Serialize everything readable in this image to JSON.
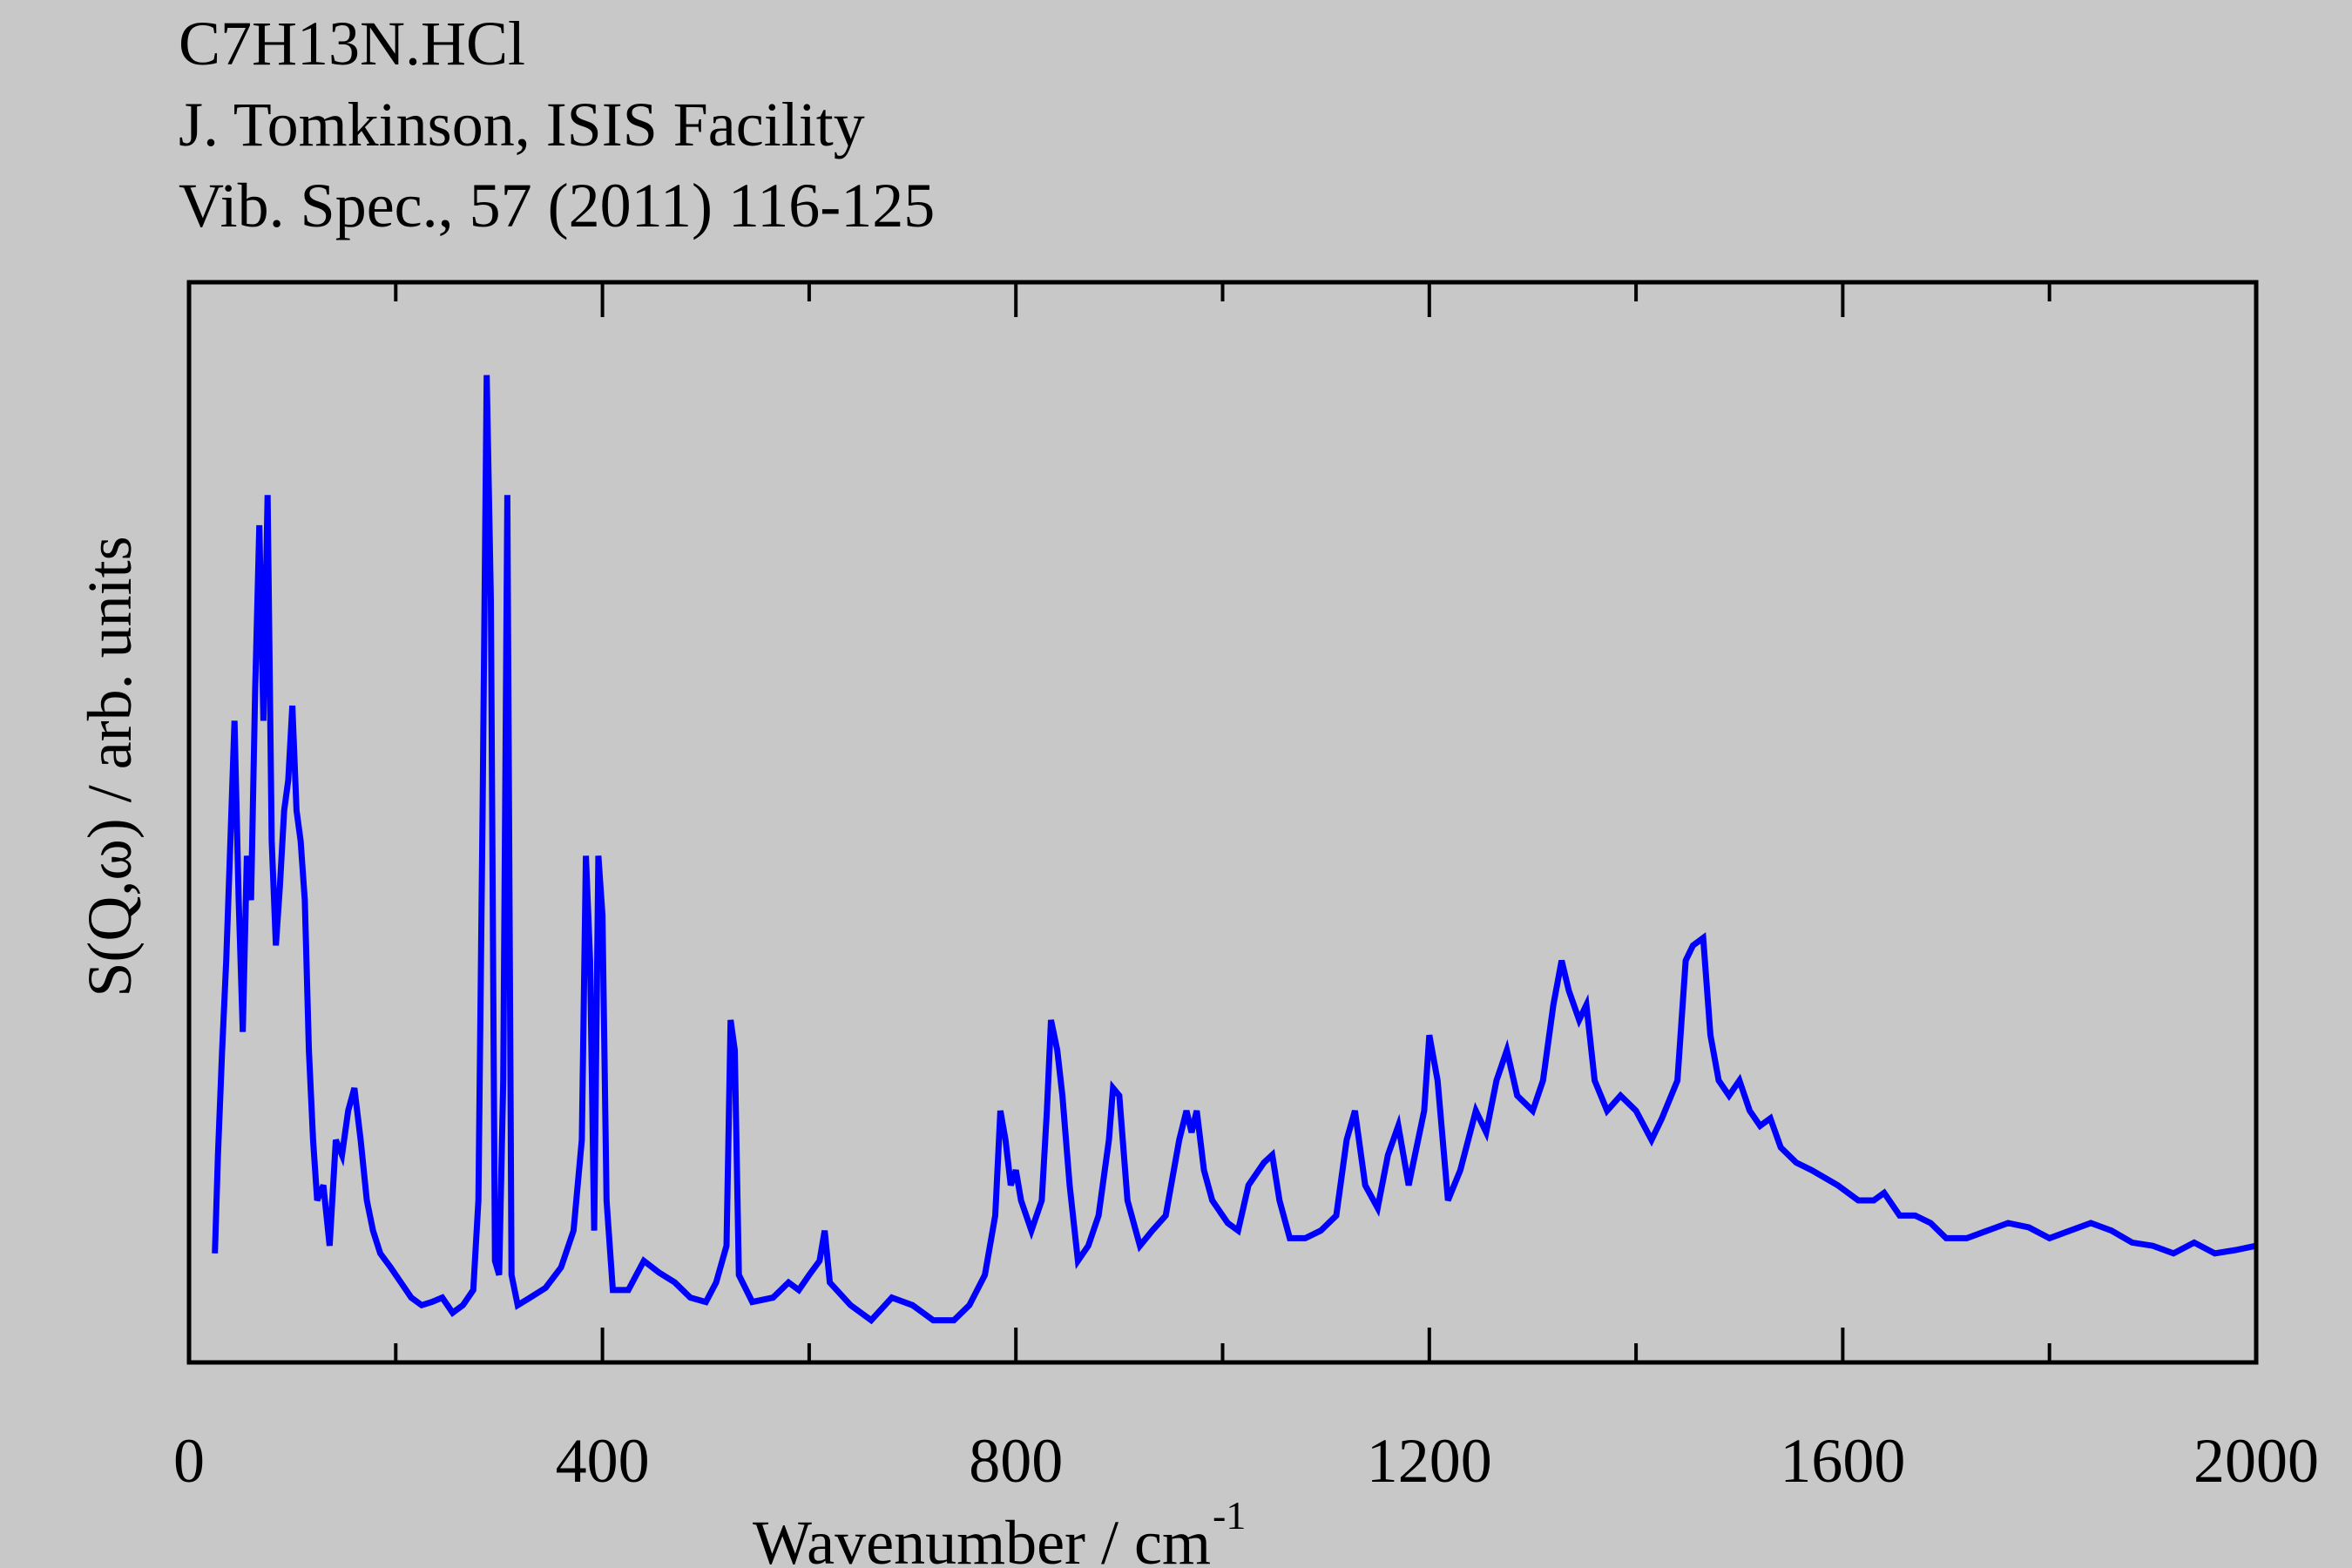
{
  "chart_data": {
    "type": "line",
    "title": "C7H13N.HCl",
    "subtitle": [
      "J. Tomkinson, ISIS Facility",
      "Vib. Spec., 57 (2011) 116-125"
    ],
    "xlabel": "Wavenumber / cm",
    "xlabel_superscript": "-1",
    "ylabel": "S(Q,ω) / arb. units",
    "xlim": [
      0,
      2000
    ],
    "ylim": [
      0,
      100
    ],
    "xticks": [
      0,
      400,
      800,
      1200,
      1600,
      2000
    ],
    "xminorticks": [
      200,
      600,
      1000,
      1400,
      1800
    ],
    "color": "#0000ff",
    "x": [
      25,
      28,
      32,
      36,
      40,
      44,
      48,
      52,
      56,
      60,
      64,
      68,
      72,
      76,
      80,
      84,
      88,
      92,
      96,
      100,
      104,
      108,
      112,
      116,
      120,
      124,
      130,
      136,
      142,
      148,
      154,
      160,
      166,
      172,
      178,
      185,
      195,
      205,
      215,
      225,
      235,
      245,
      255,
      265,
      275,
      280,
      284,
      288,
      292,
      296,
      300,
      304,
      308,
      312,
      318,
      330,
      345,
      360,
      372,
      380,
      384,
      388,
      392,
      396,
      400,
      404,
      410,
      425,
      440,
      455,
      470,
      485,
      500,
      510,
      520,
      524,
      528,
      532,
      545,
      565,
      580,
      590,
      600,
      610,
      615,
      620,
      640,
      660,
      680,
      700,
      720,
      740,
      755,
      770,
      780,
      785,
      790,
      795,
      800,
      805,
      815,
      825,
      830,
      834,
      840,
      845,
      852,
      860,
      870,
      880,
      890,
      894,
      900,
      908,
      920,
      932,
      945,
      958,
      965,
      970,
      975,
      982,
      990,
      1005,
      1015,
      1025,
      1040,
      1048,
      1055,
      1065,
      1080,
      1095,
      1110,
      1120,
      1128,
      1138,
      1150,
      1160,
      1170,
      1180,
      1195,
      1200,
      1208,
      1218,
      1230,
      1245,
      1255,
      1265,
      1275,
      1285,
      1300,
      1310,
      1320,
      1328,
      1335,
      1345,
      1352,
      1360,
      1372,
      1385,
      1400,
      1415,
      1425,
      1440,
      1448,
      1455,
      1465,
      1472,
      1480,
      1490,
      1500,
      1510,
      1520,
      1530,
      1540,
      1555,
      1570,
      1595,
      1615,
      1630,
      1640,
      1655,
      1670,
      1685,
      1700,
      1720,
      1740,
      1760,
      1780,
      1800,
      1820,
      1840,
      1860,
      1880,
      1900,
      1920,
      1940,
      1960,
      1980,
      2000
    ],
    "values": [
      10.1,
      19.2,
      28.9,
      37.2,
      48.3,
      59.4,
      42.8,
      30.6,
      46.9,
      42.8,
      62.2,
      77.5,
      59.4,
      80.3,
      48.3,
      38.6,
      44.2,
      51.1,
      53.9,
      60.8,
      51.1,
      48.3,
      42.8,
      28.9,
      20.6,
      15.0,
      16.4,
      10.8,
      20.6,
      19.2,
      23.3,
      25.4,
      20.6,
      15.0,
      12.2,
      10.1,
      8.8,
      7.4,
      6.0,
      5.3,
      5.6,
      6.0,
      4.6,
      5.3,
      6.7,
      15.0,
      51.1,
      91.4,
      70.6,
      9.4,
      8.1,
      26.1,
      80.3,
      8.1,
      5.3,
      6.0,
      6.9,
      8.8,
      12.2,
      20.6,
      46.9,
      37.2,
      12.2,
      46.9,
      41.4,
      15.0,
      6.7,
      6.7,
      9.4,
      8.3,
      7.4,
      6.0,
      5.6,
      7.4,
      10.8,
      31.7,
      28.9,
      8.1,
      5.6,
      6.0,
      7.4,
      6.7,
      8.1,
      9.4,
      12.2,
      7.4,
      5.3,
      3.9,
      6.0,
      5.3,
      3.9,
      3.9,
      5.3,
      8.1,
      13.6,
      23.3,
      20.6,
      16.4,
      17.8,
      15.0,
      12.2,
      15.0,
      23.3,
      31.7,
      28.9,
      24.7,
      16.4,
      9.4,
      10.8,
      13.6,
      20.6,
      25.4,
      24.7,
      15.0,
      10.8,
      12.2,
      13.6,
      20.6,
      23.3,
      21.3,
      23.3,
      17.8,
      15.0,
      12.9,
      12.2,
      16.4,
      18.5,
      19.2,
      15.0,
      11.5,
      11.5,
      12.2,
      13.6,
      20.6,
      23.3,
      16.4,
      14.3,
      19.2,
      21.9,
      16.4,
      23.3,
      30.3,
      26.1,
      15.0,
      17.8,
      23.3,
      21.3,
      26.1,
      28.9,
      24.7,
      23.3,
      26.1,
      33.1,
      37.2,
      34.4,
      31.7,
      33.1,
      26.1,
      23.3,
      24.7,
      23.3,
      20.6,
      22.6,
      26.1,
      37.2,
      38.6,
      39.3,
      30.3,
      26.1,
      24.7,
      26.1,
      23.3,
      21.9,
      22.6,
      19.9,
      18.5,
      17.8,
      16.4,
      15.0,
      15.0,
      15.7,
      13.6,
      13.6,
      12.9,
      11.5,
      11.5,
      12.2,
      12.9,
      12.5,
      11.5,
      12.2,
      12.9,
      12.2,
      11.1,
      10.8,
      10.1,
      11.1,
      10.1,
      10.4,
      10.8
    ]
  }
}
